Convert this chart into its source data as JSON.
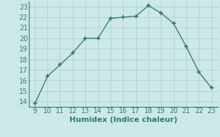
{
  "x": [
    9,
    10,
    11,
    12,
    13,
    14,
    15,
    16,
    17,
    18,
    19,
    20,
    21,
    22,
    23
  ],
  "y": [
    13.8,
    16.4,
    17.5,
    18.6,
    20.0,
    20.0,
    21.9,
    22.0,
    22.1,
    23.1,
    22.4,
    21.4,
    19.2,
    16.8,
    15.3
  ],
  "line_color": "#2e7d72",
  "marker": "+",
  "marker_size": 4,
  "bg_color": "#cce8e8",
  "grid_color": "#b0cece",
  "xlabel": "Humidex (Indice chaleur)",
  "xlabel_fontsize": 8,
  "tick_fontsize": 7,
  "xlim": [
    8.5,
    23.5
  ],
  "ylim": [
    13.5,
    23.5
  ],
  "yticks": [
    14,
    15,
    16,
    17,
    18,
    19,
    20,
    21,
    22,
    23
  ],
  "xticks": [
    9,
    10,
    11,
    12,
    13,
    14,
    15,
    16,
    17,
    18,
    19,
    20,
    21,
    22,
    23
  ],
  "tick_color": "#2e7d72",
  "line_width": 1.0
}
